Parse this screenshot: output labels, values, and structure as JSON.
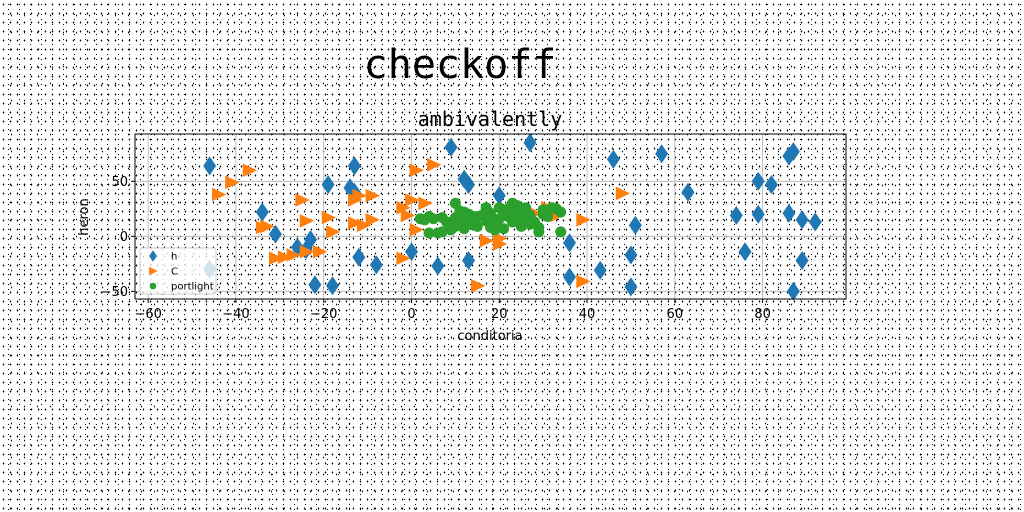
{
  "chart_data": {
    "type": "scatter",
    "suptitle": "checkoff",
    "title": "ambivalently",
    "xlabel": "conditoria",
    "ylabel": "heron",
    "xlim": [
      -63,
      99
    ],
    "ylim": [
      -57,
      93
    ],
    "xticks": [
      -60,
      -40,
      -20,
      0,
      20,
      40,
      60,
      80
    ],
    "yticks": [
      -50,
      0,
      50
    ],
    "grid": true,
    "legend_position": "lower-left",
    "series": [
      {
        "name": "h",
        "marker": "diamond",
        "color": "#1f77b4",
        "points": [
          [
            -46,
            64
          ],
          [
            -46,
            -30
          ],
          [
            -34,
            22
          ],
          [
            -31,
            2
          ],
          [
            -26,
            -10
          ],
          [
            -24,
            -12
          ],
          [
            -23,
            -3
          ],
          [
            -22,
            -44
          ],
          [
            -19,
            47
          ],
          [
            -18,
            -45
          ],
          [
            -14,
            44
          ],
          [
            -13,
            40
          ],
          [
            -13,
            64
          ],
          [
            -12,
            -19
          ],
          [
            -8,
            -26
          ],
          [
            0,
            -14
          ],
          [
            6,
            -27
          ],
          [
            9,
            81
          ],
          [
            12,
            52
          ],
          [
            13,
            47
          ],
          [
            13,
            -22
          ],
          [
            20,
            37
          ],
          [
            27,
            85
          ],
          [
            36,
            -6
          ],
          [
            36,
            -37
          ],
          [
            43,
            -31
          ],
          [
            46,
            70
          ],
          [
            50,
            -17
          ],
          [
            50,
            -46
          ],
          [
            51,
            10
          ],
          [
            57,
            75
          ],
          [
            63,
            40
          ],
          [
            74,
            19
          ],
          [
            76,
            -14
          ],
          [
            79,
            50
          ],
          [
            79,
            20
          ],
          [
            82,
            47
          ],
          [
            86,
            21
          ],
          [
            86,
            73
          ],
          [
            87,
            -50
          ],
          [
            87,
            77
          ],
          [
            89,
            15
          ],
          [
            89,
            -22
          ],
          [
            92,
            13
          ]
        ]
      },
      {
        "name": "C",
        "marker": "triangle-right",
        "color": "#ff7f0e",
        "points": [
          [
            -44,
            38
          ],
          [
            -41,
            49
          ],
          [
            -37,
            60
          ],
          [
            -34,
            8
          ],
          [
            -33,
            9
          ],
          [
            -31,
            -20
          ],
          [
            -29,
            -19
          ],
          [
            -27,
            -17
          ],
          [
            -25,
            33
          ],
          [
            -24,
            14
          ],
          [
            -24,
            -14
          ],
          [
            -21,
            -14
          ],
          [
            -19,
            17
          ],
          [
            -18,
            4
          ],
          [
            -13,
            33
          ],
          [
            -13,
            12
          ],
          [
            -12,
            37
          ],
          [
            -11,
            10
          ],
          [
            -9,
            15
          ],
          [
            -9,
            37
          ],
          [
            -2,
            -20
          ],
          [
            -2,
            26
          ],
          [
            -1,
            19
          ],
          [
            0,
            33
          ],
          [
            1,
            6
          ],
          [
            1,
            60
          ],
          [
            3,
            30
          ],
          [
            5,
            65
          ],
          [
            17,
            -4
          ],
          [
            20,
            -2
          ],
          [
            20,
            -7
          ],
          [
            28,
            21
          ],
          [
            31,
            26
          ],
          [
            33,
            19
          ],
          [
            39,
            15
          ],
          [
            39,
            -41
          ],
          [
            48,
            39
          ],
          [
            15,
            -45
          ]
        ]
      },
      {
        "name": "portlight",
        "marker": "circle",
        "color": "#2ca02c",
        "points": [
          [
            2,
            16
          ],
          [
            3,
            15
          ],
          [
            4,
            18
          ],
          [
            4,
            3
          ],
          [
            5,
            16
          ],
          [
            6,
            3
          ],
          [
            7,
            17
          ],
          [
            7,
            4
          ],
          [
            8,
            13
          ],
          [
            9,
            6
          ],
          [
            10,
            17
          ],
          [
            10,
            30
          ],
          [
            11,
            23
          ],
          [
            11,
            17
          ],
          [
            12,
            14
          ],
          [
            12,
            7
          ],
          [
            13,
            20
          ],
          [
            14,
            18
          ],
          [
            14,
            11
          ],
          [
            15,
            9
          ],
          [
            16,
            19
          ],
          [
            17,
            14
          ],
          [
            17,
            26
          ],
          [
            18,
            21
          ],
          [
            18,
            8
          ],
          [
            19,
            6
          ],
          [
            20,
            26
          ],
          [
            20,
            16
          ],
          [
            21,
            22
          ],
          [
            21,
            7
          ],
          [
            22,
            18
          ],
          [
            22,
            25
          ],
          [
            23,
            30
          ],
          [
            23,
            13
          ],
          [
            24,
            20
          ],
          [
            24,
            28
          ],
          [
            25,
            9
          ],
          [
            25,
            16
          ],
          [
            26,
            26
          ],
          [
            26,
            20
          ],
          [
            27,
            19
          ],
          [
            27,
            11
          ],
          [
            28,
            13
          ],
          [
            29,
            8
          ],
          [
            29,
            4
          ],
          [
            30,
            24
          ],
          [
            30,
            20
          ],
          [
            31,
            18
          ],
          [
            32,
            26
          ],
          [
            33,
            25
          ],
          [
            34,
            22
          ],
          [
            34,
            4
          ],
          [
            10,
            9
          ],
          [
            12,
            22
          ],
          [
            15,
            18
          ],
          [
            19,
            12
          ]
        ]
      }
    ]
  }
}
